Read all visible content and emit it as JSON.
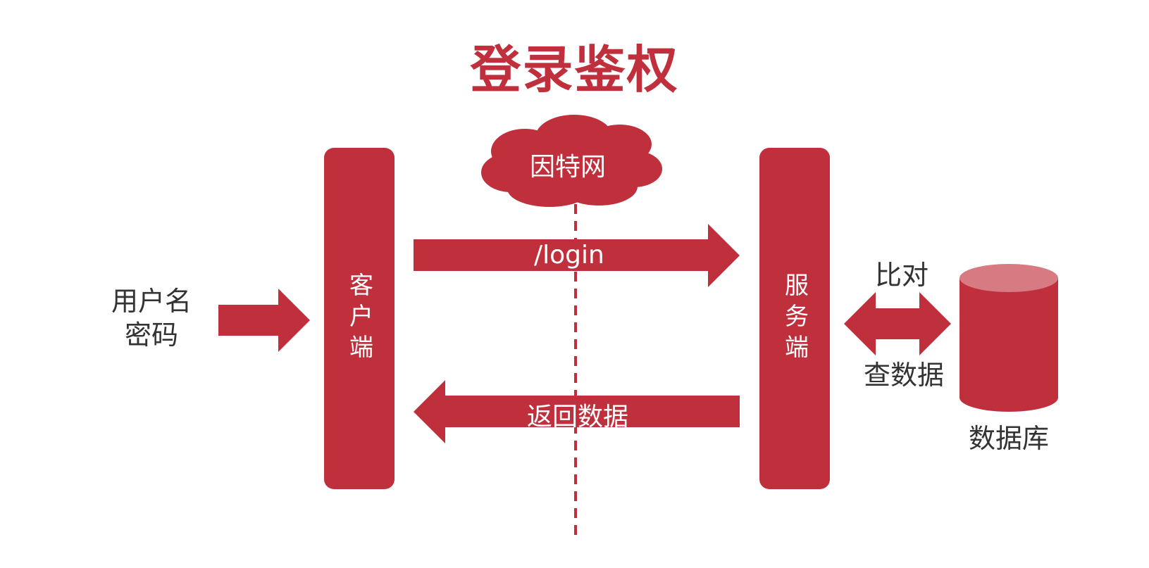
{
  "title": "登录鉴权",
  "internet_label": "因特网",
  "client_label": "客户端",
  "server_label": "服务端",
  "credentials_label": "用户名 密码",
  "request_label": "/login",
  "response_label": "返回数据",
  "compare_label": "比对",
  "query_label": "查数据",
  "database_label": "数据库",
  "colors": {
    "accent": "#c0303c",
    "db_top": "#d77a82",
    "text": "#333333"
  }
}
